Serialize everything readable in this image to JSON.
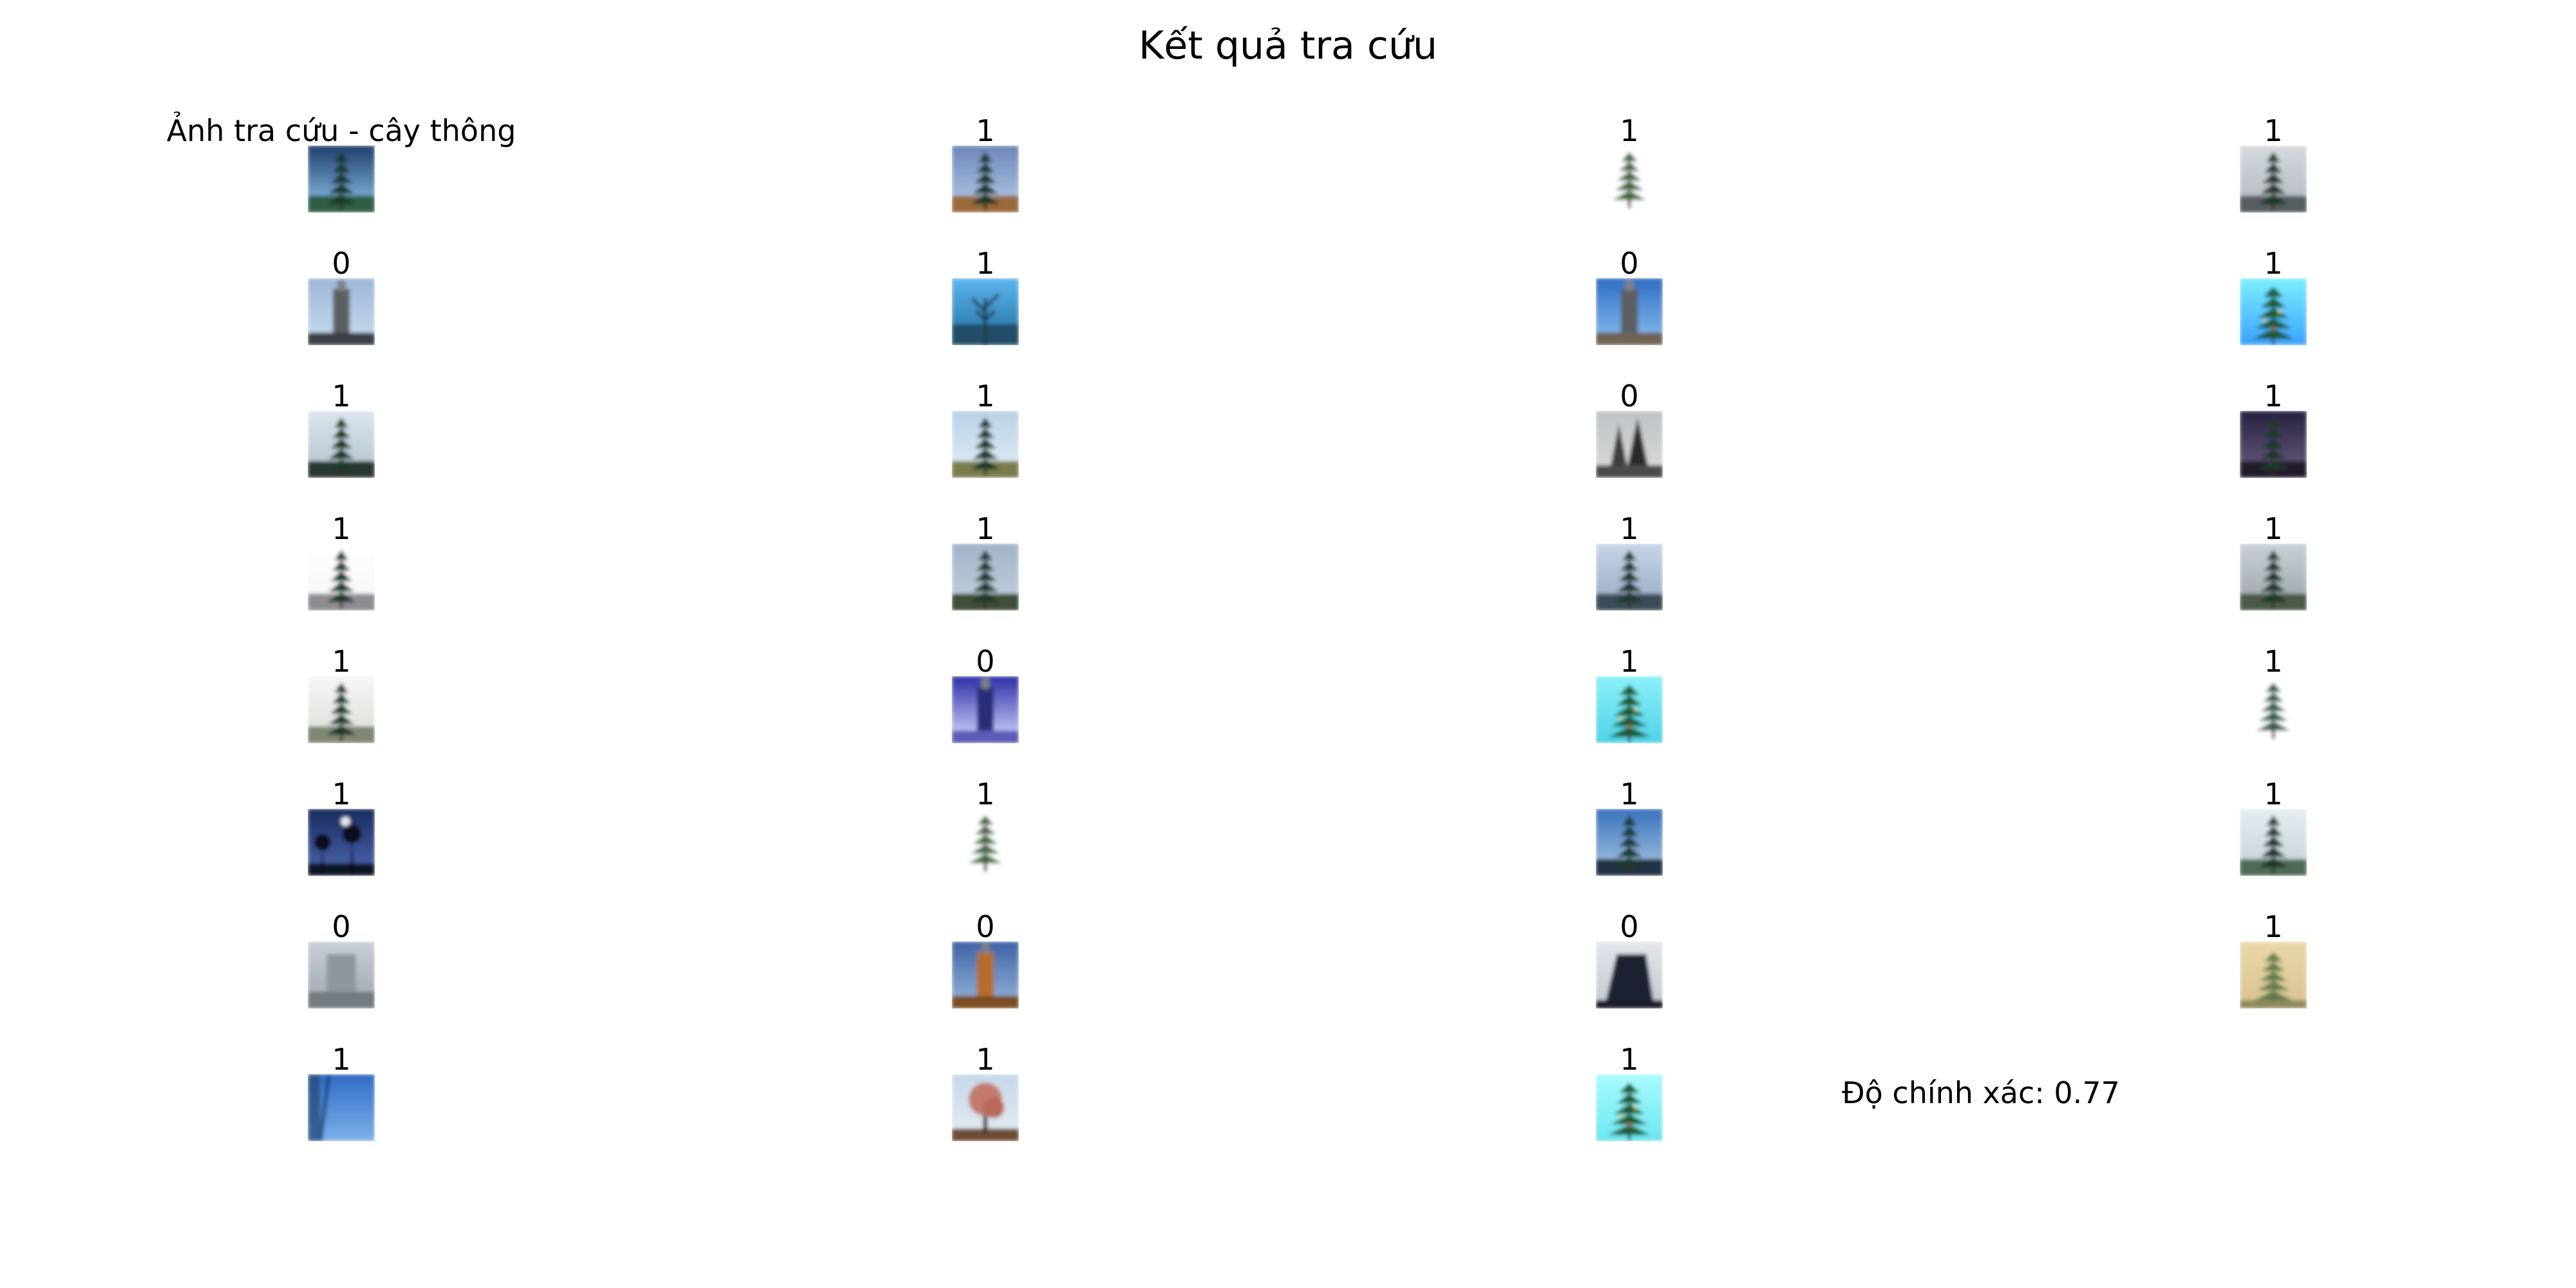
{
  "title": "Kết quả tra cứu",
  "query": {
    "label": "Ảnh tra cứu - cây thông",
    "scene": "pine-dark",
    "sky_top": "#1f3f6e",
    "sky_bottom": "#8fc7ea",
    "ground": "#2f5f45"
  },
  "results": [
    {
      "label": "1",
      "scene": "pine-hill",
      "sky_top": "#6c86b8",
      "sky_bottom": "#b7cde8",
      "ground": "#9a6a3a"
    },
    {
      "label": "1",
      "scene": "xmas-tree",
      "sky_top": "#ffffff",
      "sky_bottom": "#ffffff",
      "ground": "#ffffff"
    },
    {
      "label": "1",
      "scene": "foggy-pine",
      "sky_top": "#d5d9de",
      "sky_bottom": "#aeb6bd",
      "ground": "#555d60"
    },
    {
      "label": "0",
      "scene": "tower-dark",
      "sky_top": "#9db7d9",
      "sky_bottom": "#c9dcef",
      "ground": "#3b3f45"
    },
    {
      "label": "1",
      "scene": "bare-tree-water",
      "sky_top": "#5eb4ef",
      "sky_bottom": "#1f6e9d",
      "ground": "#214d67"
    },
    {
      "label": "0",
      "scene": "tower-light",
      "sky_top": "#2f6dc2",
      "sky_bottom": "#8ac0f0",
      "ground": "#6f6452"
    },
    {
      "label": "1",
      "scene": "xmas-blue",
      "sky_top": "#7cefff",
      "sky_bottom": "#3ba2ff",
      "ground": "#1d4fb1"
    },
    {
      "label": "1",
      "scene": "pine-landscape",
      "sky_top": "#dbe5ec",
      "sky_bottom": "#aec0ca",
      "ground": "#2c3830"
    },
    {
      "label": "1",
      "scene": "pine-pale",
      "sky_top": "#b8d1e5",
      "sky_bottom": "#e3edf4",
      "ground": "#7a7d4c"
    },
    {
      "label": "0",
      "scene": "church-spires",
      "sky_top": "#bfc3c5",
      "sky_bottom": "#d8d9da",
      "ground": "#4c4c4c"
    },
    {
      "label": "1",
      "scene": "pine-dusk",
      "sky_top": "#25213f",
      "sky_bottom": "#6f6084",
      "ground": "#241c2a"
    },
    {
      "label": "1",
      "scene": "pine-white",
      "sky_top": "#ffffff",
      "sky_bottom": "#f5f4f6",
      "ground": "#8e8c90"
    },
    {
      "label": "1",
      "scene": "pine-wide",
      "sky_top": "#a0b4c8",
      "sky_bottom": "#c4d0dc",
      "ground": "#414d39"
    },
    {
      "label": "1",
      "scene": "pine-sparse",
      "sky_top": "#c8d4e6",
      "sky_bottom": "#92a8c1",
      "ground": "#3a4c59"
    },
    {
      "label": "1",
      "scene": "pine-grey",
      "sky_top": "#c8d0d6",
      "sky_bottom": "#9aa2a6",
      "ground": "#4e5a48"
    },
    {
      "label": "1",
      "scene": "pine-fog",
      "sky_top": "#f6f6f4",
      "sky_bottom": "#d9ddd8",
      "ground": "#7f8673"
    },
    {
      "label": "0",
      "scene": "tv-tower",
      "sky_top": "#2d2fa8",
      "sky_bottom": "#d9dcff",
      "ground": "#5b5cb7"
    },
    {
      "label": "1",
      "scene": "xmas-cyan",
      "sky_top": "#8aeff8",
      "sky_bottom": "#4fd2e8",
      "ground": "#3a9ab5"
    },
    {
      "label": "1",
      "scene": "fir-isolated",
      "sky_top": "#ffffff",
      "sky_bottom": "#ffffff",
      "ground": "#ffffff"
    },
    {
      "label": "1",
      "scene": "night-trees",
      "sky_top": "#1a2b5e",
      "sky_bottom": "#4c69b3",
      "ground": "#0d1228"
    },
    {
      "label": "1",
      "scene": "xmas-tree",
      "sky_top": "#ffffff",
      "sky_bottom": "#ffffff",
      "ground": "#ffffff"
    },
    {
      "label": "1",
      "scene": "pine-silhouette",
      "sky_top": "#3a72bd",
      "sky_bottom": "#aac8e2",
      "ground": "#203044"
    },
    {
      "label": "1",
      "scene": "pine-snow",
      "sky_top": "#e5ecf0",
      "sky_bottom": "#c3d0d6",
      "ground": "#4f6a58"
    },
    {
      "label": "0",
      "scene": "building-fog",
      "sky_top": "#c6cfd5",
      "sky_bottom": "#9ba5ad",
      "ground": "#737b80"
    },
    {
      "label": "0",
      "scene": "tower-orange",
      "sky_top": "#3f63a6",
      "sky_bottom": "#97b7d9",
      "ground": "#7c4e20"
    },
    {
      "label": "0",
      "scene": "dark-building",
      "sky_top": "#e3e6ea",
      "sky_bottom": "#c1c7cf",
      "ground": "#1b1e2a"
    },
    {
      "label": "1",
      "scene": "tree-beige",
      "sky_top": "#ead7a8",
      "sky_bottom": "#d8c28f",
      "ground": "#8f8a5b"
    },
    {
      "label": "1",
      "scene": "blue-wall",
      "sky_top": "#2f6cc5",
      "sky_bottom": "#7db0ea",
      "ground": "#193a6a"
    },
    {
      "label": "1",
      "scene": "autumn-tree",
      "sky_top": "#c6d8e8",
      "sky_bottom": "#e4ebf1",
      "ground": "#6d4d35"
    },
    {
      "label": "1",
      "scene": "xmas-cyan-small",
      "sky_top": "#a7fbff",
      "sky_bottom": "#6ce6ef",
      "ground": "#3bb7c0"
    }
  ],
  "accuracy_text": "Độ chính xác: 0.77"
}
